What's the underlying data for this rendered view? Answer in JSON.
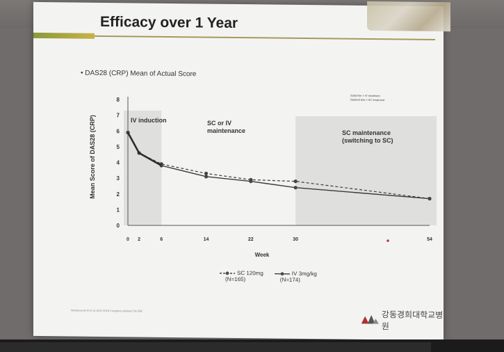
{
  "slide": {
    "title": "Efficacy over 1 Year",
    "bullet": "DAS28 (CRP) Mean of Actual Score",
    "note_lines": [
      "Solid line = IV treatment",
      "Dashed line = SC treatment"
    ],
    "footer_citation": "Westhovens R et al. ACR 2019 Congress abstract No.568",
    "logo_text": "강동경희대학교병원"
  },
  "chart_data": {
    "type": "line",
    "ylabel": "Mean Score of DAS28 (CRP)",
    "xlabel": "Week",
    "ylim": [
      0,
      8
    ],
    "y_ticks": [
      0,
      1,
      2,
      3,
      4,
      5,
      6,
      7,
      8
    ],
    "x_ticks": [
      0,
      2,
      6,
      14,
      22,
      30,
      54
    ],
    "regions": [
      {
        "label_lines": [
          "IV induction"
        ],
        "x_range": [
          0,
          6
        ]
      },
      {
        "label_lines": [
          "SC or IV",
          "maintenance"
        ],
        "x_range": [
          6,
          30
        ]
      },
      {
        "label_lines": [
          "SC maintenance",
          "(switching to SC)"
        ],
        "x_range": [
          30,
          54
        ]
      }
    ],
    "series": [
      {
        "name": "SC 120mg",
        "n_label": "(N=165)",
        "style": "dashed",
        "x": [
          0,
          2,
          6,
          14,
          22,
          30,
          54
        ],
        "y": [
          5.9,
          4.6,
          3.9,
          3.3,
          2.9,
          2.8,
          1.7
        ]
      },
      {
        "name": "IV 3mg/kg",
        "n_label": "(N=174)",
        "style": "solid",
        "x": [
          0,
          2,
          6,
          14,
          22,
          30,
          54
        ],
        "y": [
          5.9,
          4.6,
          3.8,
          3.1,
          2.8,
          2.4,
          1.7
        ]
      }
    ],
    "colors": {
      "line": "#3a3a3a",
      "shade": "#d9dbd8"
    }
  }
}
